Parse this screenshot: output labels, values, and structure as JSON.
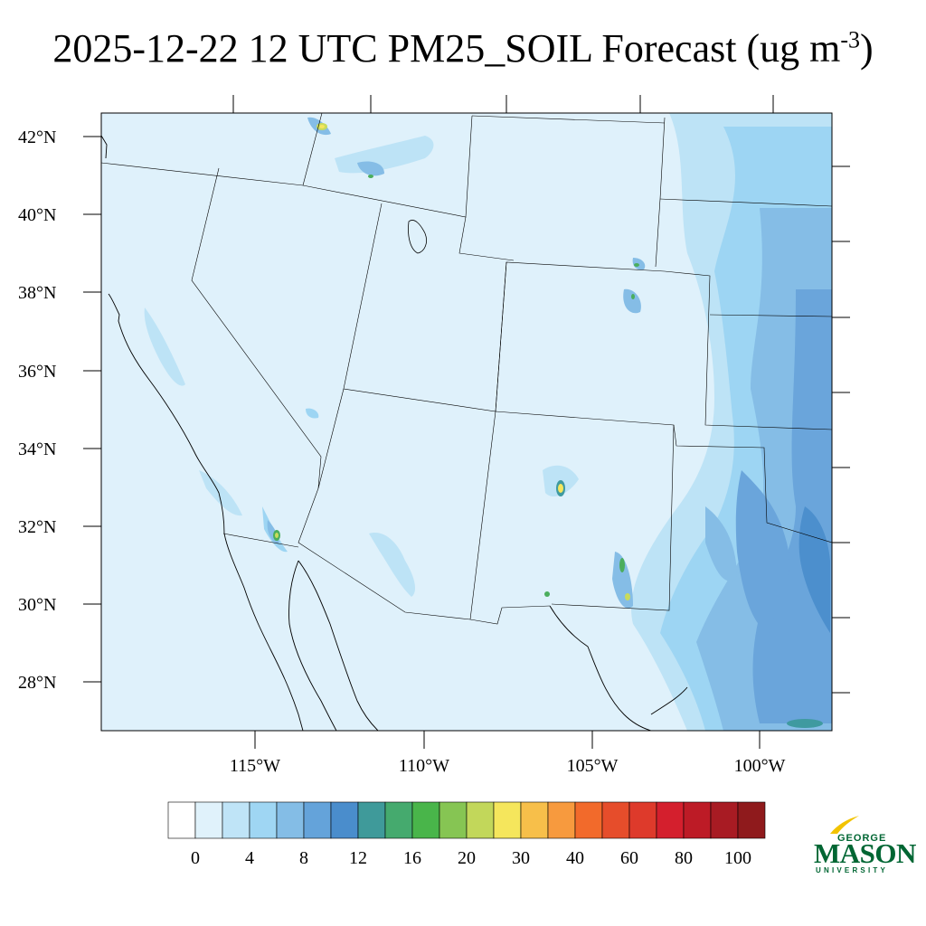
{
  "title": {
    "text": "2025-12-22 12 UTC PM25_SOIL Forecast (ug m",
    "superscript": "-3",
    "closing": ")"
  },
  "map": {
    "lat_labels": [
      "42°N",
      "40°N",
      "38°N",
      "36°N",
      "34°N",
      "32°N",
      "30°N",
      "28°N"
    ],
    "lon_labels": [
      "115°W",
      "110°W",
      "105°W",
      "100°W"
    ],
    "field_colors": {
      "background": "#dff1fb",
      "level_2": "#bde3f6",
      "level_4": "#9dd5f3",
      "level_6": "#85bde6",
      "level_8": "#6aa5db",
      "level_10": "#4c8fcd",
      "level_12": "#3f9aa0",
      "level_16": "#4bae5d",
      "level_20": "#c9db5c",
      "level_30": "#f6e65c"
    },
    "boundary_color": "#000000"
  },
  "colorbar": {
    "colors": [
      "#ffffff",
      "#e0f2fb",
      "#bfe4f7",
      "#9fd6f3",
      "#84bde6",
      "#64a3da",
      "#4a8dcc",
      "#3f9a9a",
      "#45aa6e",
      "#49b54a",
      "#86c553",
      "#c2d75a",
      "#f5e65c",
      "#f7bf4a",
      "#f79a3e",
      "#f26a2b",
      "#e64d2b",
      "#de3a2b",
      "#d41f2d",
      "#bd1b26",
      "#a81b23",
      "#8f1a1c"
    ],
    "labels": [
      "0",
      "4",
      "8",
      "12",
      "16",
      "20",
      "30",
      "40",
      "60",
      "80",
      "100"
    ]
  },
  "logo": {
    "line1": "GEORGE",
    "line2": "MASON",
    "line3": "UNIVERSITY"
  }
}
